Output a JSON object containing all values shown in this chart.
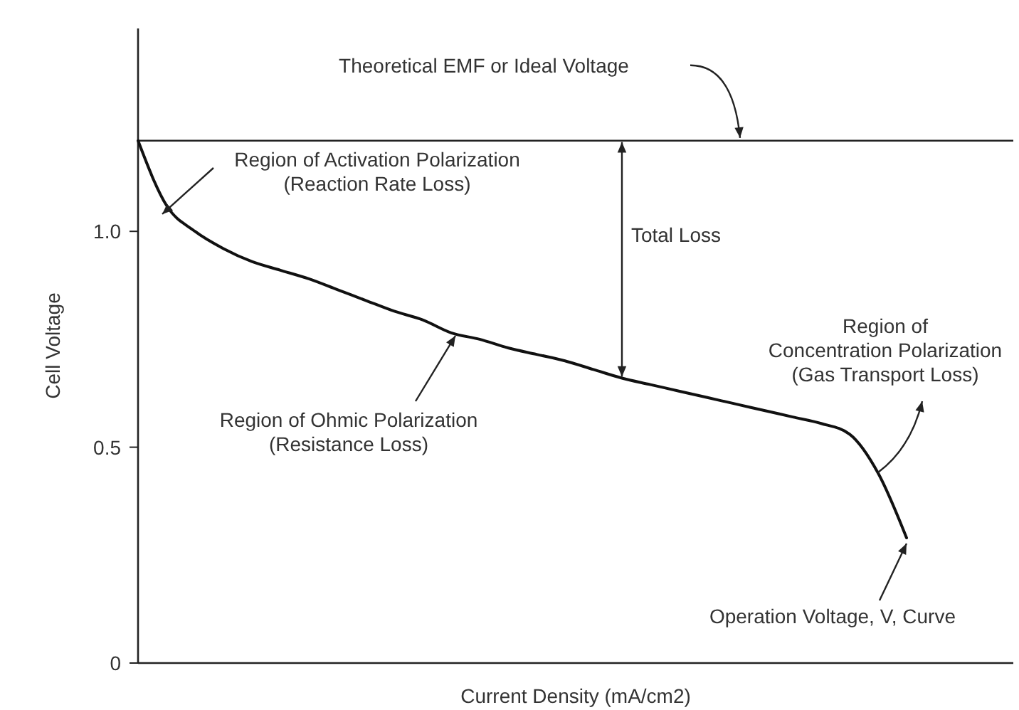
{
  "chart_data": {
    "type": "line",
    "xlabel": "Current Density (mA/cm2)",
    "ylabel": "Cell Voltage",
    "categories": [
      null,
      null,
      null,
      null,
      null,
      null,
      null,
      null,
      null,
      null,
      null,
      null,
      null,
      null,
      null,
      null,
      null,
      null,
      null,
      null,
      null,
      null,
      null,
      null,
      null,
      null,
      null,
      null,
      null,
      null,
      null
    ],
    "series": [
      {
        "color": "#111111",
        "values": [
          1.21,
          1.06,
          1.0,
          0.96,
          0.93,
          0.91,
          0.89,
          0.865,
          0.84,
          0.815,
          0.795,
          0.765,
          0.75,
          0.73,
          0.715,
          0.7,
          0.68,
          0.66,
          0.645,
          0.63,
          0.615,
          0.6,
          0.585,
          0.57,
          0.555,
          0.53,
          0.44,
          0.29,
          null,
          null,
          null
        ]
      }
    ],
    "ylim": [
      0,
      1.47
    ],
    "yticks": [
      0,
      0.5,
      {
        "value": 1,
        "label": "1.0"
      }
    ],
    "grid": false,
    "marker": "none",
    "line_style": "solid",
    "ref_lines": [
      {
        "axis": "y",
        "value": 1.21,
        "label": "Theoretical EMF or Ideal Voltage",
        "color": "#222222"
      }
    ],
    "annotations": [
      "Region of Activation Polarization\n(Reaction Rate Loss)",
      "Total Loss",
      "Region of Ohmic Polarization\n(Resistance Loss)",
      "Region of\nConcentration Polarization\n(Gas Transport Loss)",
      "Operation Voltage, V, Curve"
    ]
  }
}
